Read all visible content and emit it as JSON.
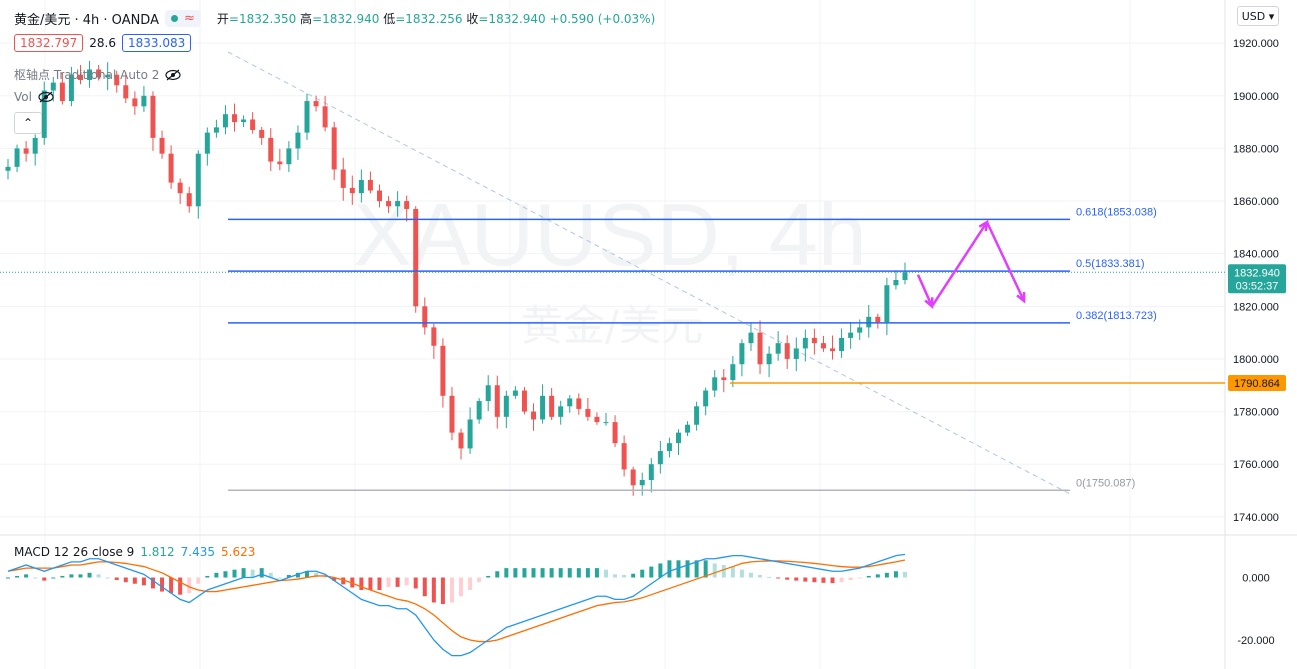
{
  "header": {
    "symbol": "黄金/美元 · 4h · OANDA",
    "wave_icon": "≈",
    "ohlc": {
      "open_label": "开",
      "open": "=1832.350",
      "high_label": "高",
      "high": "=1832.940",
      "low_label": "低",
      "low": "=1832.256",
      "close_label": "收",
      "close": "=1832.940",
      "change": "+0.590 (+0.03%)"
    }
  },
  "quote": {
    "bid": "1832.797",
    "spread": "28.6",
    "ask": "1833.083"
  },
  "indicators": {
    "pivot": "枢轴点 Traditional Auto 2",
    "vol": "Vol"
  },
  "currency_button": "USD ▾",
  "watermark": {
    "line1": "XAUUSD, 4h",
    "line2": "黄金/美元"
  },
  "colors": {
    "up": "#26a69a",
    "down": "#ef5350",
    "fib": "#2962ff",
    "support": "#ff9800",
    "arrow": "#e040fb",
    "macd": "#2196f3",
    "signal": "#ff6d00"
  },
  "chart_data": [
    {
      "type": "candlestick",
      "symbol": "XAUUSD",
      "timeframe": "4h",
      "ylim": [
        1735,
        1925
      ],
      "y_ticks": [
        "1920.000",
        "1900.000",
        "1880.000",
        "1860.000",
        "1840.000",
        "1820.000",
        "1800.000",
        "1780.000",
        "1760.000",
        "1740.000"
      ],
      "y_tick_values": [
        1920,
        1900,
        1880,
        1860,
        1840,
        1820,
        1800,
        1780,
        1760,
        1740
      ],
      "close_path": [
        1873,
        1880,
        1878,
        1884,
        1902,
        1905,
        1898,
        1908,
        1906,
        1910,
        1907,
        1908,
        1904,
        1899,
        1896,
        1900,
        1884,
        1878,
        1867,
        1863,
        1858,
        1878,
        1886,
        1888,
        1893,
        1890,
        1891,
        1887,
        1884,
        1875,
        1874,
        1880,
        1886,
        1898,
        1896,
        1888,
        1872,
        1865,
        1863,
        1868,
        1864,
        1860,
        1858,
        1860,
        1857,
        1820,
        1812,
        1805,
        1786,
        1772,
        1766,
        1777,
        1784,
        1790,
        1778,
        1786,
        1788,
        1780,
        1777,
        1786,
        1778,
        1782,
        1785,
        1781,
        1778,
        1776,
        1776,
        1768,
        1758,
        1752,
        1754,
        1760,
        1765,
        1768,
        1772,
        1775,
        1782,
        1788,
        1793,
        1792,
        1798,
        1806,
        1810,
        1798,
        1802,
        1806,
        1800,
        1804,
        1808,
        1806,
        1804,
        1803,
        1808,
        1810,
        1812,
        1816,
        1814,
        1828,
        1830,
        1832.94
      ],
      "fib_levels": [
        {
          "label": "0.618(1853.038)",
          "value": 1853.038
        },
        {
          "label": "0.5(1833.381)",
          "value": 1833.381
        },
        {
          "label": "0.382(1813.723)",
          "value": 1813.723
        },
        {
          "label": "0(1750.087)",
          "value": 1750.087
        }
      ],
      "support_level": {
        "label": "1790.864",
        "value": 1790.864
      },
      "last_price": {
        "label": "1832.940",
        "countdown": "03:52:37",
        "value": 1832.94
      },
      "projection": [
        1832,
        1820,
        1852,
        1822
      ]
    },
    {
      "type": "macd",
      "title": "MACD 12 26 close 9",
      "values_text": [
        "1.812",
        "7.435",
        "5.623"
      ],
      "ylim": [
        -28,
        12
      ],
      "y_ticks": [
        "0.000",
        "-20.000"
      ],
      "y_tick_values": [
        0,
        -20
      ],
      "macd": [
        2,
        3,
        4,
        3,
        2,
        3,
        4,
        5,
        5,
        6,
        6,
        5,
        4,
        3,
        2,
        1,
        -1,
        -3,
        -5,
        -7,
        -8,
        -6,
        -4,
        -3,
        -2,
        -1,
        0,
        0,
        1,
        0,
        -1,
        0,
        1,
        2,
        2,
        1,
        -1,
        -3,
        -5,
        -7,
        -8,
        -9,
        -9,
        -10,
        -10,
        -12,
        -16,
        -20,
        -23,
        -25,
        -25,
        -24,
        -22,
        -20,
        -18,
        -16,
        -15,
        -14,
        -13,
        -12,
        -11,
        -10,
        -9,
        -8,
        -7,
        -6,
        -6,
        -7,
        -7,
        -6,
        -4,
        -2,
        0,
        2,
        3,
        4,
        5,
        6,
        6,
        6.5,
        7,
        7,
        6.5,
        6,
        5.5,
        5,
        4.5,
        4,
        3.5,
        3,
        2.5,
        2,
        2,
        2.5,
        3,
        4,
        5,
        6,
        7,
        7.4
      ],
      "signal": [
        2,
        2.5,
        3,
        3,
        3,
        3,
        3.5,
        4,
        4,
        4.5,
        5,
        5,
        4.8,
        4.5,
        4,
        3.5,
        2.5,
        1.5,
        0,
        -1.5,
        -3,
        -4,
        -4.5,
        -4.5,
        -4,
        -3.5,
        -3,
        -2.5,
        -2,
        -1.5,
        -1,
        -0.8,
        -0.5,
        0,
        0.5,
        0.5,
        0,
        -0.8,
        -1.8,
        -3,
        -4,
        -5,
        -6,
        -7,
        -7.5,
        -8.5,
        -10,
        -12,
        -14.5,
        -17,
        -19,
        -20,
        -20.5,
        -20.5,
        -20,
        -19,
        -18,
        -17,
        -16,
        -15,
        -14,
        -13,
        -12,
        -11,
        -10,
        -9,
        -8.5,
        -8,
        -7.8,
        -7.2,
        -6.5,
        -5.5,
        -4.5,
        -3.5,
        -2.5,
        -1.5,
        -0.5,
        0.5,
        1.5,
        2.5,
        3.5,
        4.5,
        5,
        5.2,
        5.3,
        5.3,
        5.2,
        5,
        4.8,
        4.5,
        4.2,
        3.8,
        3.5,
        3.3,
        3.3,
        3.5,
        4,
        4.5,
        5,
        5.6
      ]
    }
  ]
}
